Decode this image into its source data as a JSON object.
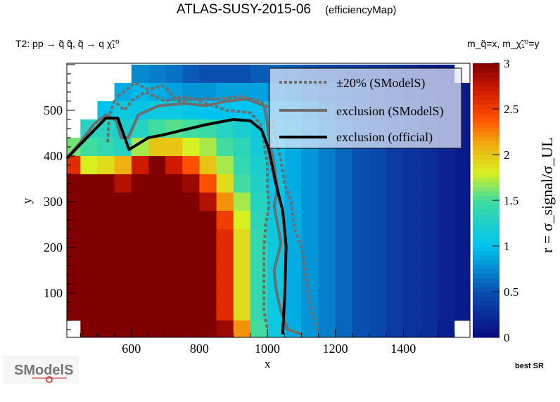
{
  "chart_data": {
    "type": "heatmap",
    "title": "ATLAS-SUSY-2015-06",
    "subtitle": "(efficiencyMap)",
    "process_label": "T2: pp → q̃ q̃, q̃ → q χ̃₁⁰",
    "mass_label": "m_q̃=x, m_χ̃₁⁰=y",
    "xlabel": "x",
    "ylabel": "y",
    "zlabel": "r = σ_signal/σ_UL",
    "footer_label": "best SR",
    "logo_text": "SModelS",
    "xlim": [
      410,
      1596
    ],
    "ylim": [
      3,
      603
    ],
    "zlim": [
      0,
      3
    ],
    "xticks": [
      600,
      800,
      1000,
      1200,
      1400
    ],
    "yticks": [
      100,
      200,
      300,
      400,
      500
    ],
    "zticks": [
      "0",
      "0.5",
      "1",
      "1.5",
      "2",
      "2.5",
      "3"
    ],
    "grid_x": [
      425,
      475,
      525,
      575,
      625,
      675,
      725,
      775,
      825,
      875,
      925,
      975,
      1025,
      1075,
      1125,
      1175,
      1225,
      1275,
      1325,
      1375,
      1425,
      1475,
      1525,
      1575
    ],
    "grid_y": [
      580,
      540,
      500,
      460,
      420,
      380,
      340,
      300,
      260,
      220,
      180,
      140,
      100,
      60,
      20
    ],
    "grid_cell": [
      50,
      40
    ],
    "z": [
      [
        null,
        null,
        null,
        null,
        0.75,
        0.7,
        0.65,
        0.55,
        0.5,
        0.5,
        0.5,
        0.55,
        0.6,
        0.55,
        0.5,
        0.45,
        0.4,
        0.35,
        0.3,
        0.25,
        0.2,
        0.15,
        0.12,
        null
      ],
      [
        null,
        null,
        null,
        0.9,
        0.95,
        0.9,
        0.85,
        0.8,
        0.8,
        0.85,
        0.85,
        0.85,
        0.75,
        0.7,
        0.6,
        0.55,
        0.5,
        0.45,
        0.35,
        0.3,
        0.25,
        0.2,
        0.15,
        0.12
      ],
      [
        null,
        null,
        1.0,
        1.1,
        1.05,
        1.1,
        1.1,
        1.05,
        1.0,
        1.0,
        1.0,
        1.0,
        0.9,
        0.85,
        0.75,
        0.65,
        0.55,
        0.5,
        0.4,
        0.35,
        0.3,
        0.25,
        0.18,
        0.12
      ],
      [
        null,
        1.3,
        1.3,
        1.2,
        1.3,
        1.5,
        1.55,
        1.5,
        1.45,
        1.3,
        1.2,
        1.1,
        0.95,
        0.9,
        0.8,
        0.7,
        0.6,
        0.5,
        0.45,
        0.35,
        0.3,
        0.25,
        0.18,
        0.12
      ],
      [
        1.6,
        1.5,
        1.4,
        1.3,
        1.7,
        2.0,
        2.0,
        1.8,
        1.7,
        1.5,
        1.35,
        1.15,
        1.0,
        0.9,
        0.8,
        0.7,
        0.6,
        0.5,
        0.45,
        0.35,
        0.3,
        0.25,
        0.18,
        0.12
      ],
      [
        2.6,
        1.8,
        1.9,
        2.1,
        2.7,
        3,
        2.7,
        2.4,
        2.0,
        1.7,
        1.4,
        1.2,
        1.0,
        0.9,
        0.8,
        0.7,
        0.6,
        0.5,
        0.45,
        0.35,
        0.3,
        0.25,
        0.18,
        0.12
      ],
      [
        3,
        3,
        3,
        2.8,
        3,
        3,
        3,
        2.9,
        2.4,
        1.9,
        1.5,
        1.25,
        1.05,
        0.9,
        0.8,
        0.7,
        0.6,
        0.5,
        0.45,
        0.35,
        0.3,
        0.25,
        0.18,
        0.12
      ],
      [
        3,
        3,
        3,
        3,
        3,
        3,
        3,
        3,
        2.8,
        2.2,
        1.7,
        1.3,
        1.05,
        0.9,
        0.8,
        0.7,
        0.6,
        0.5,
        0.45,
        0.35,
        0.3,
        0.25,
        0.18,
        0.12
      ],
      [
        3,
        3,
        3,
        3,
        3,
        3,
        3,
        3,
        3,
        2.5,
        1.8,
        1.35,
        1.1,
        0.9,
        0.8,
        0.7,
        0.6,
        0.5,
        0.45,
        0.35,
        0.3,
        0.25,
        0.18,
        0.12
      ],
      [
        3,
        3,
        3,
        3,
        3,
        3,
        3,
        3,
        3,
        2.6,
        1.9,
        1.4,
        1.1,
        0.9,
        0.8,
        0.7,
        0.6,
        0.5,
        0.45,
        0.35,
        0.3,
        0.25,
        0.18,
        0.12
      ],
      [
        3,
        3,
        3,
        3,
        3,
        3,
        3,
        3,
        3,
        2.6,
        1.9,
        1.4,
        1.1,
        0.9,
        0.8,
        0.7,
        0.6,
        0.5,
        0.45,
        0.35,
        0.3,
        0.25,
        0.18,
        0.12
      ],
      [
        3,
        3,
        3,
        3,
        3,
        3,
        3,
        3,
        3,
        2.6,
        1.9,
        1.4,
        1.1,
        0.9,
        0.8,
        0.7,
        0.6,
        0.5,
        0.45,
        0.35,
        0.3,
        0.25,
        0.18,
        0.12
      ],
      [
        3,
        3,
        3,
        3,
        3,
        3,
        3,
        3,
        3,
        2.6,
        1.9,
        1.4,
        1.1,
        0.9,
        0.8,
        0.7,
        0.6,
        0.5,
        0.45,
        0.35,
        0.3,
        0.25,
        0.18,
        0.12
      ],
      [
        3,
        3,
        3,
        3,
        3,
        3,
        3,
        3,
        3,
        2.6,
        1.9,
        1.4,
        1.1,
        0.9,
        0.8,
        0.7,
        0.6,
        0.5,
        0.45,
        0.35,
        0.3,
        0.25,
        0.18,
        0.12
      ],
      [
        null,
        3,
        3,
        3,
        3,
        3,
        3,
        3,
        3,
        2.9,
        2.2,
        1.5,
        1.1,
        0.9,
        0.8,
        0.7,
        0.6,
        0.5,
        0.45,
        0.35,
        0.3,
        0.25,
        0.15,
        null
      ]
    ],
    "contours": [
      {
        "name": "±20% (SModelS)",
        "style": "dashed",
        "color": "#6e6e6e",
        "segments": [
          [
            [
              530,
              430
            ],
            [
              535,
              490
            ],
            [
              550,
              520
            ],
            [
              580,
              500
            ],
            [
              600,
              520
            ],
            [
              640,
              540
            ],
            [
              700,
              520
            ],
            [
              760,
              530
            ],
            [
              820,
              515
            ],
            [
              880,
              500
            ],
            [
              950,
              495
            ],
            [
              980,
              470
            ],
            [
              990,
              430
            ],
            [
              1000,
              380
            ],
            [
              1000,
              330
            ],
            [
              1005,
              290
            ],
            [
              995,
              250
            ],
            [
              990,
              200
            ],
            [
              990,
              120
            ],
            [
              990,
              60
            ],
            [
              1000,
              20
            ]
          ],
          [
            [
              560,
              530
            ],
            [
              610,
              560
            ],
            [
              650,
              545
            ],
            [
              690,
              555
            ],
            [
              740,
              520
            ],
            [
              800,
              525
            ],
            [
              860,
              525
            ],
            [
              920,
              530
            ],
            [
              980,
              520
            ],
            [
              1010,
              500
            ],
            [
              1020,
              460
            ],
            [
              1030,
              420
            ],
            [
              1040,
              390
            ],
            [
              1050,
              340
            ],
            [
              1070,
              300
            ],
            [
              1080,
              240
            ],
            [
              1100,
              200
            ],
            [
              1110,
              150
            ],
            [
              1120,
              100
            ],
            [
              1130,
              60
            ],
            [
              1150,
              15
            ]
          ]
        ]
      },
      {
        "name": "exclusion (SModelS)",
        "style": "solid",
        "color": "#6e6e6e",
        "segments": [
          [
            [
              410,
              395
            ],
            [
              450,
              430
            ],
            [
              490,
              470
            ],
            [
              525,
              490
            ],
            [
              555,
              478
            ],
            [
              570,
              440
            ],
            [
              590,
              440
            ],
            [
              600,
              455
            ],
            [
              620,
              490
            ],
            [
              680,
              510
            ],
            [
              760,
              515
            ],
            [
              820,
              510
            ],
            [
              880,
              520
            ],
            [
              940,
              525
            ],
            [
              990,
              510
            ],
            [
              1000,
              470
            ],
            [
              1010,
              420
            ],
            [
              1020,
              380
            ],
            [
              1030,
              330
            ],
            [
              1020,
              290
            ],
            [
              1030,
              250
            ],
            [
              1040,
              210
            ],
            [
              1030,
              180
            ],
            [
              1020,
              150
            ],
            [
              1025,
              110
            ],
            [
              1040,
              60
            ],
            [
              1060,
              20
            ],
            [
              1100,
              10
            ]
          ]
        ]
      },
      {
        "name": "exclusion (official)",
        "style": "solid",
        "color": "#000000",
        "segments": [
          [
            [
              410,
              395
            ],
            [
              525,
              483
            ],
            [
              560,
              483
            ],
            [
              593,
              414
            ],
            [
              650,
              440
            ],
            [
              692,
              446
            ],
            [
              816,
              468
            ],
            [
              900,
              480
            ],
            [
              950,
              477
            ],
            [
              983,
              457
            ],
            [
              1003,
              418
            ],
            [
              1024,
              342
            ],
            [
              1045,
              280
            ],
            [
              1055,
              203
            ],
            [
              1051,
              95
            ],
            [
              1045,
              10
            ]
          ]
        ]
      }
    ],
    "legend": {
      "placement": "top-right",
      "entries": [
        "±20% (SModelS)",
        "exclusion (SModelS)",
        "exclusion (official)"
      ]
    },
    "colormap": [
      [
        0,
        "#0a0a80"
      ],
      [
        0.5,
        "#0a4fb0"
      ],
      [
        1,
        "#00c4f0"
      ],
      [
        1.5,
        "#40dca0"
      ],
      [
        1.8,
        "#d8f020"
      ],
      [
        2.1,
        "#f0b010"
      ],
      [
        2.4,
        "#ff5000"
      ],
      [
        2.7,
        "#d01a00"
      ],
      [
        3,
        "#800000"
      ]
    ]
  }
}
